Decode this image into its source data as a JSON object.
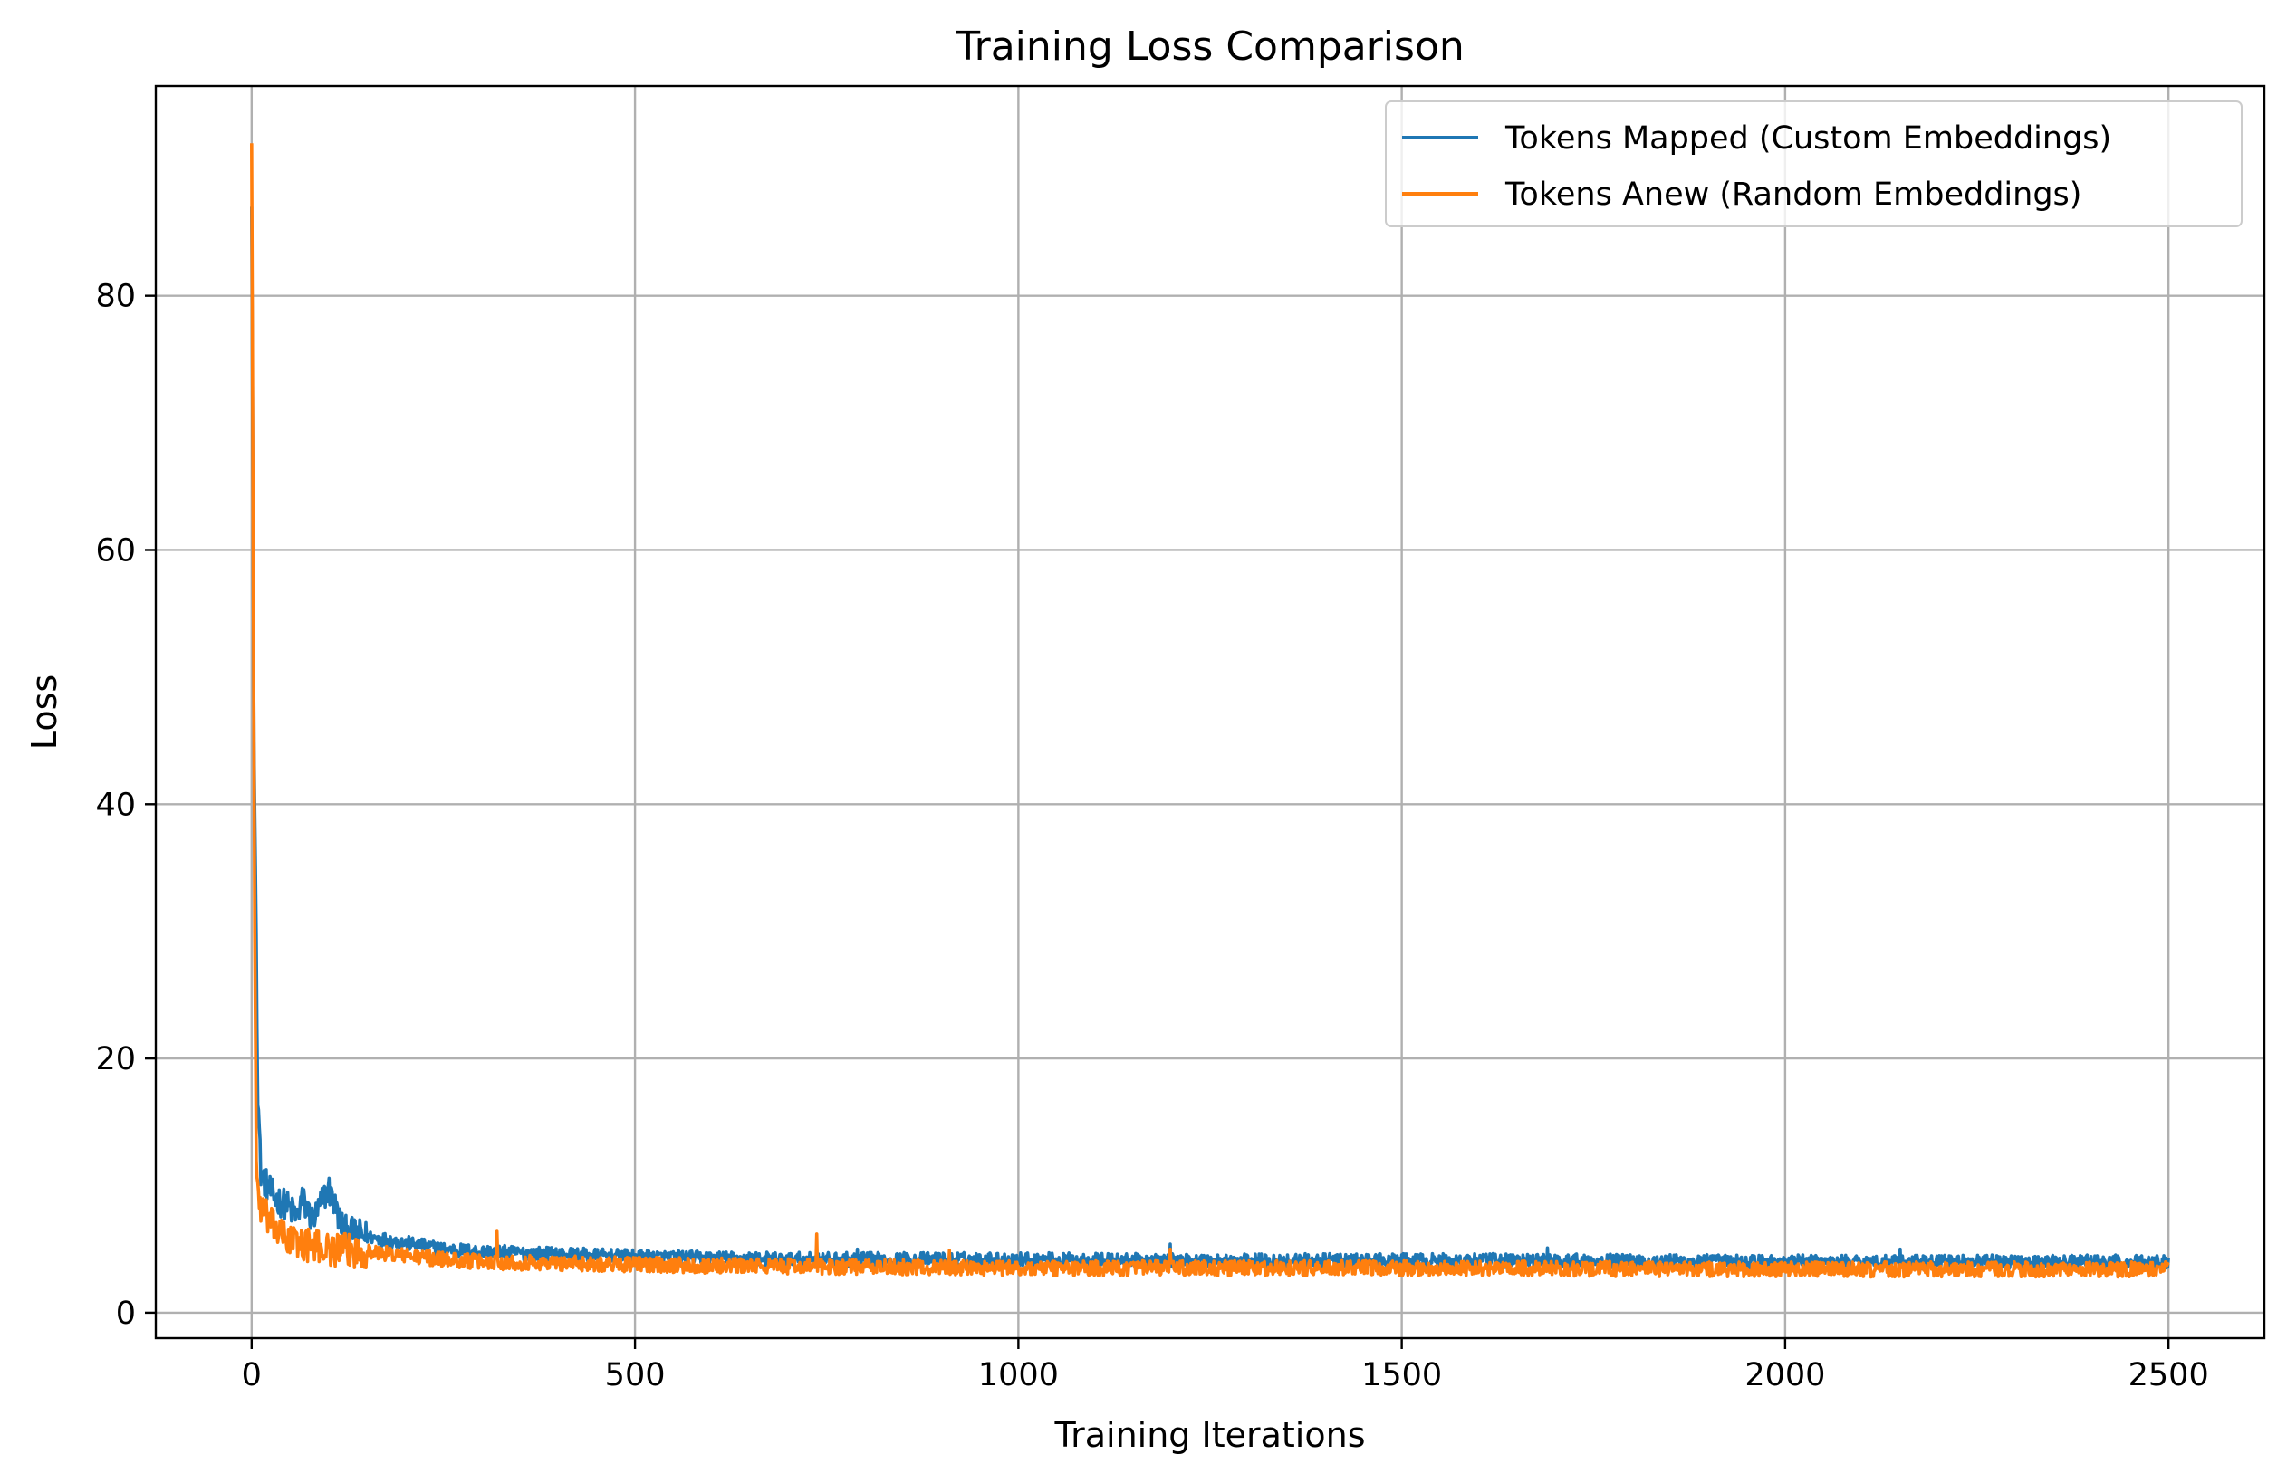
{
  "chart_data": {
    "type": "line",
    "title": "Training Loss Comparison",
    "xlabel": "Training Iterations",
    "ylabel": "Loss",
    "xlim": [
      -125,
      2625
    ],
    "ylim": [
      -2,
      96.5
    ],
    "xticks": [
      0,
      500,
      1000,
      1500,
      2000,
      2500
    ],
    "yticks": [
      0,
      20,
      40,
      60,
      80
    ],
    "grid": true,
    "legend_position": "top-right",
    "series": [
      {
        "name": "Tokens Mapped (Custom Embeddings)",
        "color": "#1f77b4",
        "keypoints": {
          "x": [
            0,
            3,
            6,
            8,
            12,
            20,
            30,
            45,
            60,
            65,
            80,
            100,
            120,
            150,
            200,
            250,
            300,
            400,
            500,
            600,
            700,
            800,
            1000,
            1200,
            1500,
            1700,
            2000,
            2200,
            2500
          ],
          "y": [
            87.0,
            45.0,
            29.7,
            17.5,
            11.0,
            10.0,
            9.0,
            8.5,
            7.5,
            9.0,
            7.2,
            9.8,
            6.5,
            6.0,
            5.5,
            5.0,
            4.8,
            4.6,
            4.4,
            4.3,
            4.2,
            4.2,
            4.2,
            4.1,
            4.1,
            4.1,
            4.0,
            4.0,
            4.0
          ]
        },
        "noise_amplitude": 0.55,
        "spikes": [
          {
            "x": 1198,
            "y": 5.4
          },
          {
            "x": 1690,
            "y": 5.1
          },
          {
            "x": 790,
            "y": 5.0
          },
          {
            "x": 2150,
            "y": 5.0
          }
        ]
      },
      {
        "name": "Tokens Anew (Random Embeddings)",
        "color": "#ff7f0e",
        "keypoints": {
          "x": [
            0,
            2,
            4,
            6,
            10,
            15,
            25,
            40,
            60,
            100,
            150,
            200,
            250,
            300,
            400,
            500,
            600,
            800,
            1000,
            1500,
            2000,
            2500
          ],
          "y": [
            92.0,
            60.0,
            30.0,
            12.0,
            8.5,
            8.0,
            7.0,
            6.0,
            5.5,
            5.0,
            4.8,
            4.5,
            4.2,
            4.0,
            3.9,
            3.8,
            3.7,
            3.6,
            3.5,
            3.5,
            3.4,
            3.4
          ]
        },
        "noise_amplitude": 0.6,
        "spikes": [
          {
            "x": 320,
            "y": 6.4
          },
          {
            "x": 737,
            "y": 6.2
          },
          {
            "x": 1198,
            "y": 5.0
          },
          {
            "x": 910,
            "y": 4.9
          }
        ]
      }
    ]
  }
}
